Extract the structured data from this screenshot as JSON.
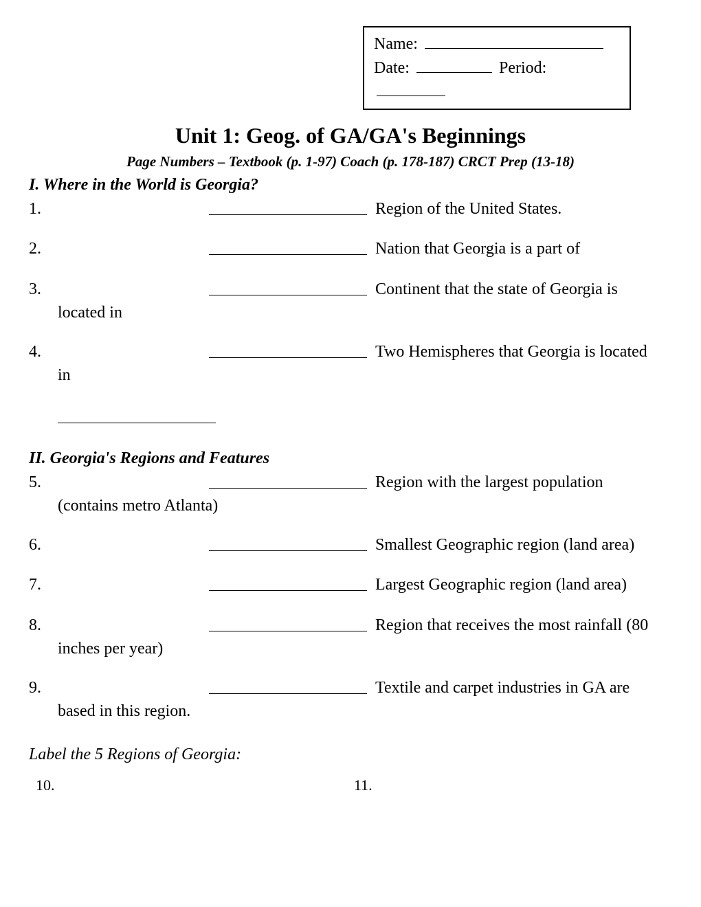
{
  "header": {
    "name_label": "Name:",
    "date_label": "Date:",
    "period_label": "Period:"
  },
  "title": "Unit 1: Geog. of GA/GA's Beginnings",
  "subtitle": "Page Numbers – Textbook (p. 1-97)     Coach (p. 178-187)    CRCT Prep (13-18)",
  "section1": {
    "head": "I. Where in the World is Georgia?",
    "items": [
      {
        "num": "1.",
        "desc": "Region of the United States."
      },
      {
        "num": "2.",
        "desc": "Nation that Georgia is a part of"
      },
      {
        "num": "3.",
        "desc": "Continent that the state of Georgia is",
        "cont": "located in"
      },
      {
        "num": "4.",
        "desc": "Two Hemispheres that Georgia is located",
        "cont": "in",
        "extra_blank": true
      }
    ]
  },
  "section2": {
    "head": "II. Georgia's Regions and Features",
    "items": [
      {
        "num": "5.",
        "desc": "Region with the largest population",
        "cont": "(contains metro Atlanta)"
      },
      {
        "num": "6.",
        "desc": "Smallest Geographic region (land area)"
      },
      {
        "num": "7.",
        "desc": "Largest Geographic region (land area)"
      },
      {
        "num": "8.",
        "desc": "Region that receives the most rainfall (80",
        "cont": "inches per year)"
      },
      {
        "num": "9.",
        "desc": "Textile and carpet industries in GA are",
        "cont": "based in this region."
      }
    ]
  },
  "label_section": {
    "instr": "Label the 5 Regions of Georgia:",
    "left_num": "10.",
    "right_num": "11."
  }
}
